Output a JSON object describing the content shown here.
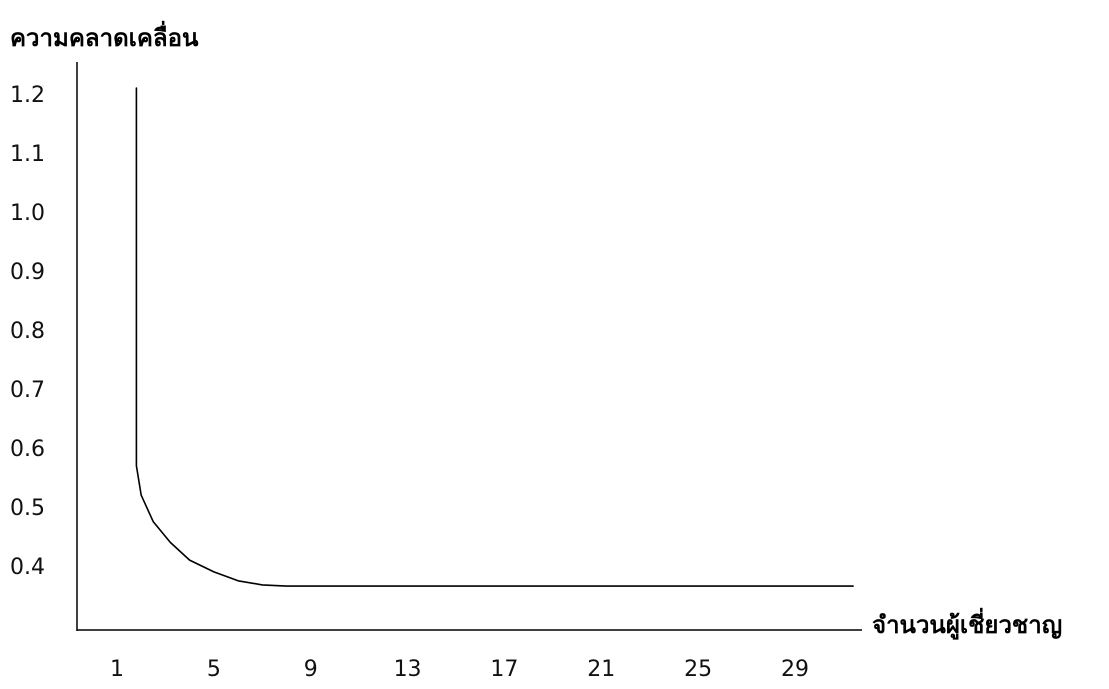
{
  "chart_data": {
    "type": "line",
    "title": "",
    "ylabel": "ความคลาดเคลื่อน",
    "xlabel": "จำนวนผู้เชี่ยวชาญ",
    "x_ticks": [
      1,
      5,
      9,
      13,
      17,
      21,
      25,
      29
    ],
    "y_ticks": [
      "1.2",
      "1.1",
      "1.0",
      "0.9",
      "0.8",
      "0.7",
      "0.6",
      "0.5",
      "0.4"
    ],
    "xlim": [
      -0.5,
      32.5
    ],
    "ylim": [
      0.3,
      1.2
    ],
    "grid": false,
    "legend": "none",
    "series": [
      {
        "color": "#000000",
        "x": [
          1.8,
          1.8,
          2.0,
          2.5,
          3.2,
          4.0,
          5.0,
          6.0,
          7.0,
          8.0,
          12.0,
          20.0,
          29.0,
          31.4
        ],
        "y": [
          1.21,
          0.57,
          0.52,
          0.475,
          0.44,
          0.41,
          0.39,
          0.375,
          0.368,
          0.366,
          0.366,
          0.366,
          0.366,
          0.366
        ]
      }
    ]
  }
}
